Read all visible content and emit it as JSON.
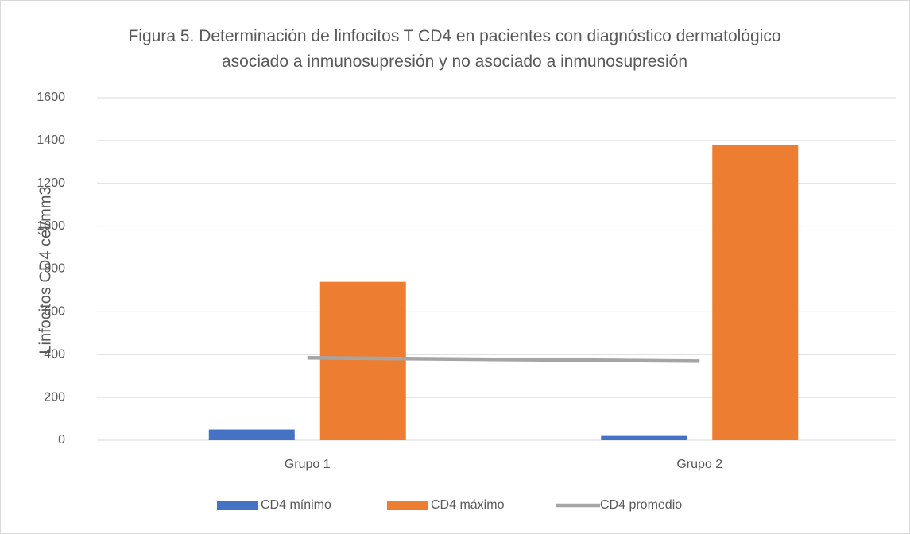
{
  "chart_data": {
    "type": "bar",
    "title": "Figura 5. Determinación de linfocitos T CD4 en pacientes con diagnóstico dermatológico asociado a inmunosupresión y no asociado a inmunosupresión",
    "y_label": "Linfocitos CD4 cél/mm3",
    "categories": [
      "Grupo 1",
      "Grupo 2"
    ],
    "series": [
      {
        "name": "CD4 mínimo",
        "color": "#4472c4",
        "type": "bar",
        "values": [
          50,
          20
        ]
      },
      {
        "name": "CD4 máximo",
        "color": "#ed7d31",
        "type": "bar",
        "values": [
          740,
          1380
        ]
      },
      {
        "name": "CD4 promedio",
        "color": "#a5a5a5",
        "type": "line",
        "values": [
          385,
          370
        ]
      }
    ],
    "ylim": [
      0,
      1600
    ],
    "yticks": [
      0,
      200,
      400,
      600,
      800,
      1000,
      1200,
      1400,
      1600
    ],
    "grid": true,
    "legend": "bottom"
  }
}
